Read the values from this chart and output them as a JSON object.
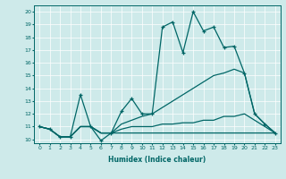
{
  "xlabel": "Humidex (Indice chaleur)",
  "ylabel": "",
  "bg_color": "#ceeaea",
  "line_color": "#006666",
  "xlim": [
    -0.5,
    23.5
  ],
  "ylim": [
    9.7,
    20.5
  ],
  "yticks": [
    10,
    11,
    12,
    13,
    14,
    15,
    16,
    17,
    18,
    19,
    20
  ],
  "xticks": [
    0,
    1,
    2,
    3,
    4,
    5,
    6,
    7,
    8,
    9,
    10,
    11,
    12,
    13,
    14,
    15,
    16,
    17,
    18,
    19,
    20,
    21,
    22,
    23
  ],
  "lines": [
    {
      "x": [
        0,
        1,
        2,
        3,
        4,
        5,
        6,
        7,
        8,
        9,
        10,
        11,
        12,
        13,
        14,
        15,
        16,
        17,
        18,
        19,
        20,
        21,
        22,
        23
      ],
      "y": [
        11.0,
        10.8,
        10.2,
        10.2,
        13.5,
        11.0,
        9.9,
        10.5,
        12.2,
        13.2,
        12.0,
        12.0,
        18.8,
        19.2,
        16.8,
        20.0,
        18.5,
        18.8,
        17.2,
        17.3,
        15.2,
        12.0,
        11.2,
        10.5
      ],
      "marker": true
    },
    {
      "x": [
        0,
        1,
        2,
        3,
        4,
        5,
        6,
        7,
        8,
        9,
        10,
        11,
        12,
        13,
        14,
        15,
        16,
        17,
        18,
        19,
        20,
        21,
        22,
        23
      ],
      "y": [
        11.0,
        10.8,
        10.2,
        10.2,
        11.0,
        11.0,
        10.5,
        10.5,
        11.2,
        11.5,
        11.8,
        12.0,
        12.5,
        13.0,
        13.5,
        14.0,
        14.5,
        15.0,
        15.2,
        15.5,
        15.2,
        12.0,
        11.2,
        10.5
      ],
      "marker": false
    },
    {
      "x": [
        0,
        1,
        2,
        3,
        4,
        5,
        6,
        7,
        8,
        9,
        10,
        11,
        12,
        13,
        14,
        15,
        16,
        17,
        18,
        19,
        20,
        21,
        22,
        23
      ],
      "y": [
        11.0,
        10.8,
        10.2,
        10.2,
        11.0,
        11.0,
        10.5,
        10.5,
        10.8,
        11.0,
        11.0,
        11.0,
        11.2,
        11.2,
        11.3,
        11.3,
        11.5,
        11.5,
        11.8,
        11.8,
        12.0,
        11.5,
        11.0,
        10.5
      ],
      "marker": false
    },
    {
      "x": [
        0,
        1,
        2,
        3,
        4,
        5,
        6,
        7,
        8,
        9,
        10,
        11,
        12,
        13,
        14,
        15,
        16,
        17,
        18,
        19,
        20,
        21,
        22,
        23
      ],
      "y": [
        11.0,
        10.8,
        10.2,
        10.2,
        11.0,
        11.0,
        10.5,
        10.5,
        10.5,
        10.5,
        10.5,
        10.5,
        10.5,
        10.5,
        10.5,
        10.5,
        10.5,
        10.5,
        10.5,
        10.5,
        10.5,
        10.5,
        10.5,
        10.5
      ],
      "marker": false
    }
  ]
}
